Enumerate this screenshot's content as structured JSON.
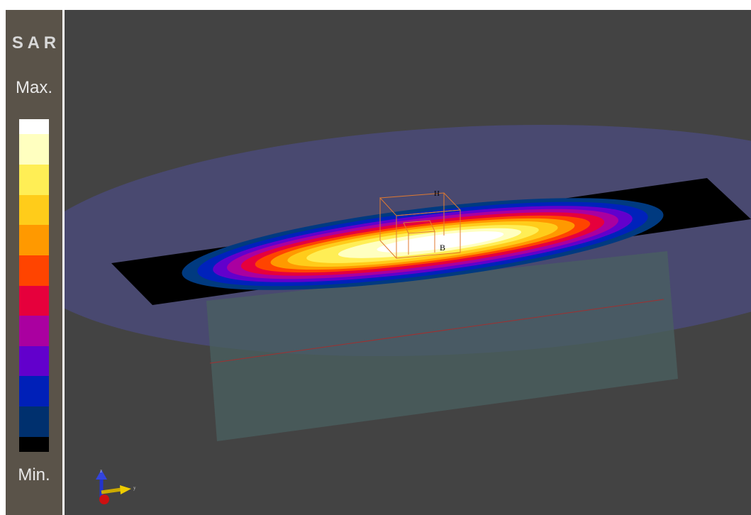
{
  "panel": {
    "title": "S A R",
    "max_label": "Max.",
    "min_label": "Min."
  },
  "scene": {
    "labels": [
      "H",
      "B"
    ],
    "axes": [
      "z",
      "y"
    ]
  }
}
